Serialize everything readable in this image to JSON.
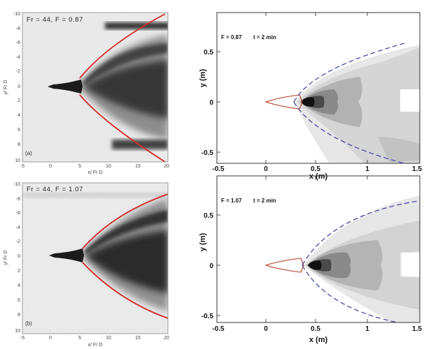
{
  "colors": {
    "fit_curve": "#d42a2a",
    "envelope": "#4a4aa8",
    "body": "#b43a20",
    "shade_light": "#e7e7e7",
    "shade_mid": "#cfcfcf",
    "shade_dark": "#9a9a9a",
    "shade_core": "#111111"
  },
  "experiments": [
    {
      "title": "Fr = 44, F = 0.87",
      "panel_label": "(a)",
      "xlabel": "x/ Fr D",
      "ylabel": "y/ Fr D",
      "xticks": [
        "-5",
        "0",
        "5",
        "10",
        "15",
        "20"
      ],
      "yticks": [
        "-10",
        "-8",
        "-6",
        "-4",
        "-2",
        "0",
        "2",
        "4",
        "6",
        "8",
        "10"
      ]
    },
    {
      "title": "Fr = 44, F = 1.07",
      "panel_label": "(b)",
      "xlabel": "x/ Fr D",
      "ylabel": "y/ Fr D",
      "xticks": [
        "-5",
        "0",
        "5",
        "10",
        "15",
        "20"
      ],
      "yticks": [
        "-10",
        "-8",
        "-6",
        "-4",
        "-2",
        "0",
        "2",
        "4",
        "6",
        "8",
        "10"
      ]
    }
  ],
  "simulations": [
    {
      "title_f": "F = 0.87",
      "title_t": "t = 2 min",
      "xlabel": "x (m)",
      "ylabel": "y (m)",
      "xticks": [
        "-0.5",
        "0",
        "0.5",
        "1",
        "1.5"
      ],
      "yticks": [
        "0.5",
        "0",
        "-0.5"
      ]
    },
    {
      "title_f": "F = 1.07",
      "title_t": "t = 2 min",
      "xlabel": "x (m)",
      "ylabel": "y (m)",
      "xticks": [
        "-0.5",
        "0",
        "0.5",
        "1",
        "1.5"
      ],
      "yticks": [
        "0.5",
        "0",
        "-0.5"
      ]
    }
  ]
}
